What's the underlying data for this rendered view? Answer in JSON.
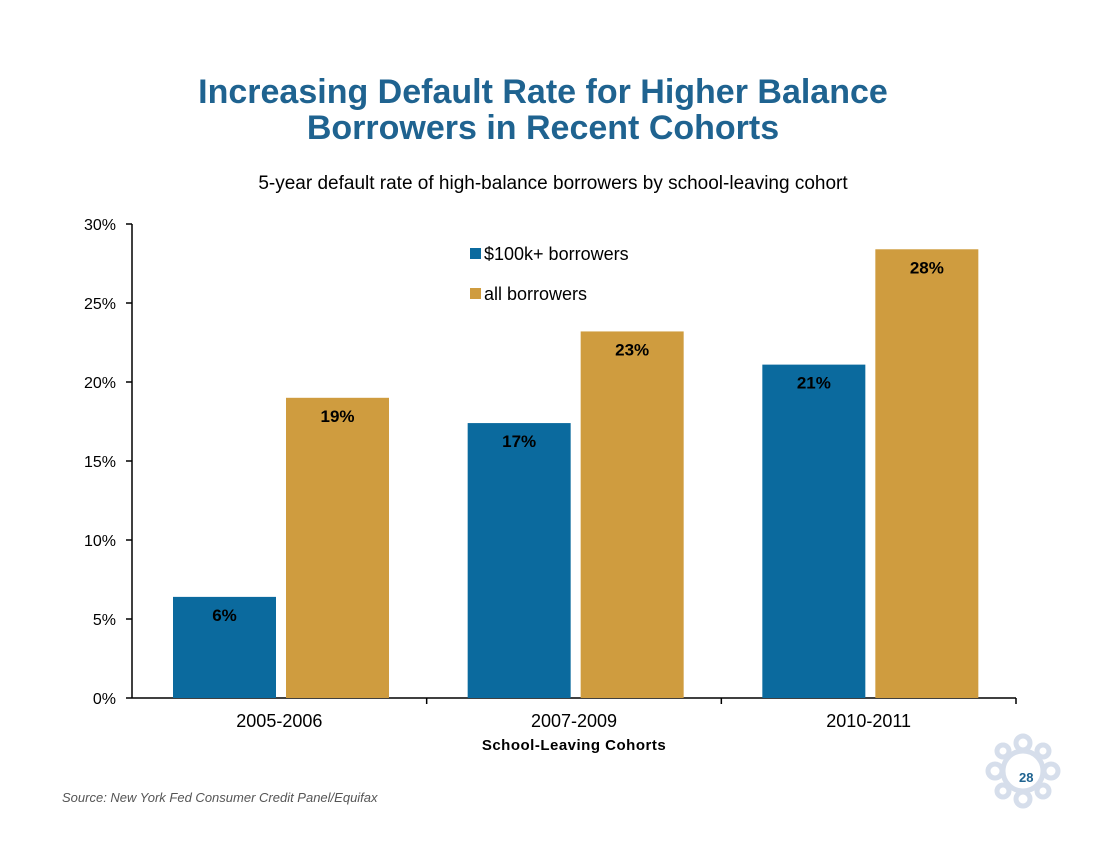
{
  "slide": {
    "title_line1": "Increasing Default Rate for Higher Balance",
    "title_line2": "Borrowers in Recent Cohorts",
    "subtitle": "5-year default rate of high-balance borrowers by school-leaving cohort",
    "source": "Source: New York Fed Consumer Credit Panel/Equifax",
    "page_number": "28",
    "logo_icon": "new-york-fed-seal-icon"
  },
  "chart_data": {
    "type": "bar",
    "title": "",
    "subtitle": "5-year default rate of high-balance borrowers by school-leaving cohort",
    "xlabel": "School-Leaving Cohorts",
    "ylabel": "",
    "categories": [
      "2005-2006",
      "2007-2009",
      "2010-2011"
    ],
    "series": [
      {
        "name": "$100k+ borrowers",
        "values": [
          6.4,
          17.4,
          21.1
        ],
        "labels": [
          "6%",
          "17%",
          "21%"
        ],
        "color": "#0b6a9e"
      },
      {
        "name": "all borrowers",
        "values": [
          19.0,
          23.2,
          28.4
        ],
        "labels": [
          "19%",
          "23%",
          "28%"
        ],
        "color": "#cf9c3f"
      }
    ],
    "ylim": [
      0,
      30
    ],
    "yticks": [
      0,
      5,
      10,
      15,
      20,
      25,
      30
    ],
    "ytick_labels": [
      "0%",
      "5%",
      "10%",
      "15%",
      "20%",
      "25%",
      "30%"
    ],
    "grid": false,
    "legend_position": "top-center"
  }
}
